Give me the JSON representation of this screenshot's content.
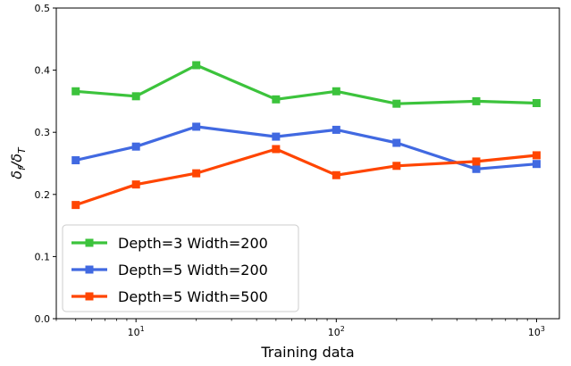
{
  "chart_data": {
    "type": "line",
    "xscale": "log",
    "xlim": [
      4,
      1300
    ],
    "ylim": [
      0,
      0.5
    ],
    "xlabel": "Training data",
    "ylabel": "δf/δT",
    "yticks": [
      "0.0",
      "0.1",
      "0.2",
      "0.3",
      "0.4",
      "0.5"
    ],
    "xticks": [
      {
        "value": 10,
        "base": "10",
        "exp": "1"
      },
      {
        "value": 100,
        "base": "10",
        "exp": "2"
      },
      {
        "value": 1000,
        "base": "10",
        "exp": "3"
      }
    ],
    "grid": false,
    "legend_position": "bottom-left",
    "x": [
      5,
      10,
      20,
      50,
      100,
      200,
      500,
      1000
    ],
    "series": [
      {
        "name": "Depth=3 Width=200",
        "color": "#3cc33c",
        "values": [
          0.366,
          0.358,
          0.408,
          0.353,
          0.366,
          0.346,
          0.35,
          0.347
        ]
      },
      {
        "name": "Depth=5 Width=200",
        "color": "#4169e1",
        "values": [
          0.255,
          0.277,
          0.309,
          0.293,
          0.304,
          0.283,
          0.241,
          0.249
        ]
      },
      {
        "name": "Depth=5 Width=500",
        "color": "#ff4500",
        "values": [
          0.183,
          0.216,
          0.234,
          0.273,
          0.231,
          0.246,
          0.253,
          0.263
        ]
      }
    ]
  }
}
